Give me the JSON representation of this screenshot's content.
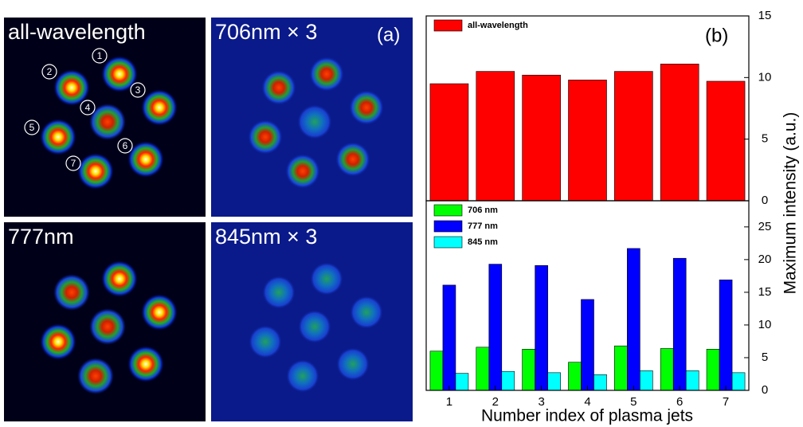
{
  "panel_a": {
    "label": "(a)",
    "images": [
      {
        "title": "all-wavelength"
      },
      {
        "title": "706nm × 3"
      },
      {
        "title": "777nm"
      },
      {
        "title": "845nm × 3"
      }
    ],
    "jet_labels": [
      "1",
      "2",
      "3",
      "4",
      "5",
      "6",
      "7"
    ]
  },
  "panel_b_label": "(b)",
  "y_label": "Maximum intensity (a.u.)",
  "x_label": "Number index of plasma jets",
  "chart_data": [
    {
      "type": "bar",
      "ylim": [
        0,
        15
      ],
      "yticks": [
        0,
        5,
        10,
        15
      ],
      "series": [
        {
          "name": "all-wavelength",
          "color": "#ff0000",
          "values": [
            9.5,
            10.5,
            10.2,
            9.8,
            10.5,
            11.1,
            9.7
          ]
        }
      ]
    },
    {
      "type": "bar",
      "categories": [
        "1",
        "2",
        "3",
        "4",
        "5",
        "6",
        "7"
      ],
      "ylim": [
        0,
        29
      ],
      "yticks": [
        0,
        5,
        10,
        15,
        20,
        25
      ],
      "series": [
        {
          "name": "706 nm",
          "color": "#00ff00",
          "values": [
            6.0,
            6.6,
            6.3,
            4.3,
            6.8,
            6.4,
            6.3
          ]
        },
        {
          "name": "777 nm",
          "color": "#0000ff",
          "values": [
            16.1,
            19.3,
            19.1,
            13.9,
            21.7,
            20.2,
            16.9
          ]
        },
        {
          "name": "845 nm",
          "color": "#00ffff",
          "values": [
            2.6,
            2.9,
            2.7,
            2.4,
            3.0,
            3.0,
            2.7
          ]
        }
      ]
    }
  ]
}
